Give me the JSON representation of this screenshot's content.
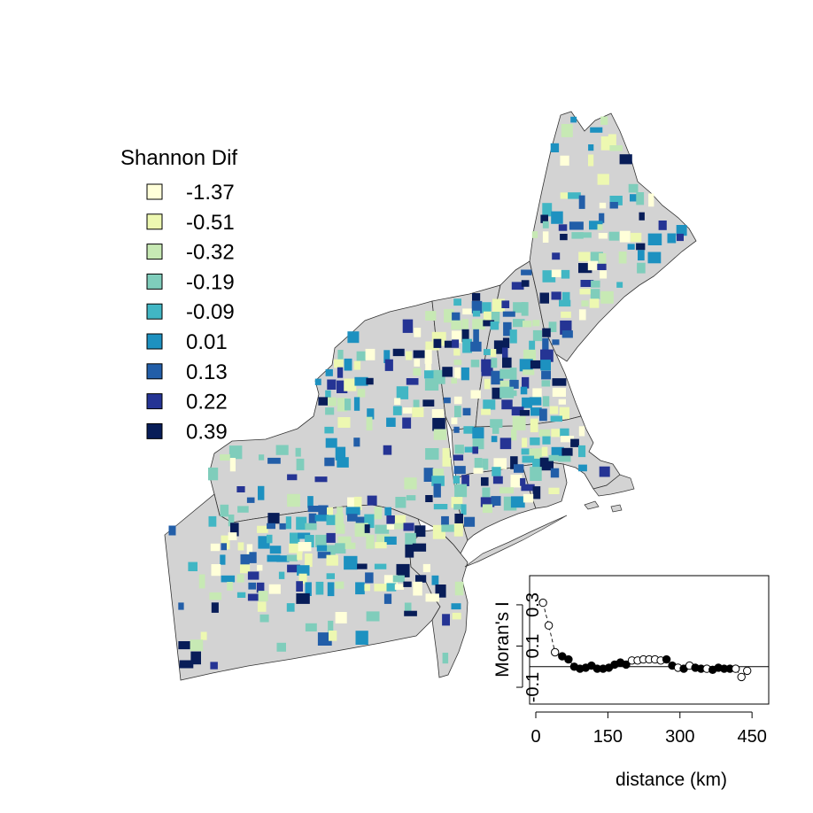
{
  "legend": {
    "title": "Shannon Dif",
    "entries": [
      {
        "label": "-1.37",
        "color": "#ffffd9"
      },
      {
        "label": "-0.51",
        "color": "#edf8b1"
      },
      {
        "label": "-0.32",
        "color": "#c7e9b4"
      },
      {
        "label": "-0.19",
        "color": "#7fcdbb"
      },
      {
        "label": "-0.09",
        "color": "#41b6c4"
      },
      {
        "label": "0.01",
        "color": "#1d91c0"
      },
      {
        "label": "0.13",
        "color": "#225ea8"
      },
      {
        "label": "0.22",
        "color": "#253494"
      },
      {
        "label": "0.39",
        "color": "#081d58"
      }
    ]
  },
  "map": {
    "land_color": "#d3d3d3",
    "regions": [
      "Maine",
      "New Hampshire",
      "Vermont",
      "Massachusetts",
      "Rhode Island",
      "Connecticut",
      "New York",
      "New Jersey",
      "Pennsylvania"
    ]
  },
  "chart_data": {
    "type": "scatter",
    "xlabel": "distance (km)",
    "ylabel": "Moran's I",
    "xlim": [
      0,
      470
    ],
    "ylim": [
      -0.16,
      0.42
    ],
    "xticks": [
      0,
      150,
      300,
      450
    ],
    "yticks": [
      -0.1,
      0.1,
      0.3
    ],
    "xtick_labels": [
      "0",
      "150",
      "300",
      "450"
    ],
    "ytick_labels": [
      "-0.1",
      "0.1",
      "0.3"
    ],
    "reference_line_y": 0,
    "series": [
      {
        "marker": "open-circle = not significant, filled-circle = significant",
        "x": [
          15,
          27,
          40,
          55,
          68,
          80,
          92,
          104,
          116,
          128,
          140,
          152,
          164,
          176,
          188,
          200,
          212,
          224,
          236,
          248,
          260,
          272,
          284,
          296,
          308,
          320,
          332,
          344,
          356,
          368,
          380,
          392,
          404,
          416,
          428,
          440
        ],
        "y": [
          0.31,
          0.2,
          0.07,
          0.05,
          0.035,
          0.0,
          -0.01,
          -0.005,
          0.005,
          -0.01,
          -0.01,
          -0.005,
          0.01,
          0.02,
          0.01,
          0.03,
          0.03,
          0.035,
          0.035,
          0.035,
          0.03,
          0.035,
          0.005,
          -0.005,
          -0.01,
          0.005,
          -0.005,
          -0.01,
          -0.01,
          -0.015,
          -0.005,
          -0.01,
          -0.01,
          -0.01,
          -0.05,
          -0.02
        ],
        "significant": [
          false,
          false,
          false,
          true,
          true,
          true,
          true,
          true,
          true,
          true,
          true,
          true,
          true,
          true,
          true,
          false,
          false,
          false,
          false,
          false,
          false,
          true,
          true,
          false,
          true,
          false,
          true,
          true,
          false,
          true,
          true,
          true,
          true,
          false,
          false,
          false
        ]
      }
    ]
  }
}
